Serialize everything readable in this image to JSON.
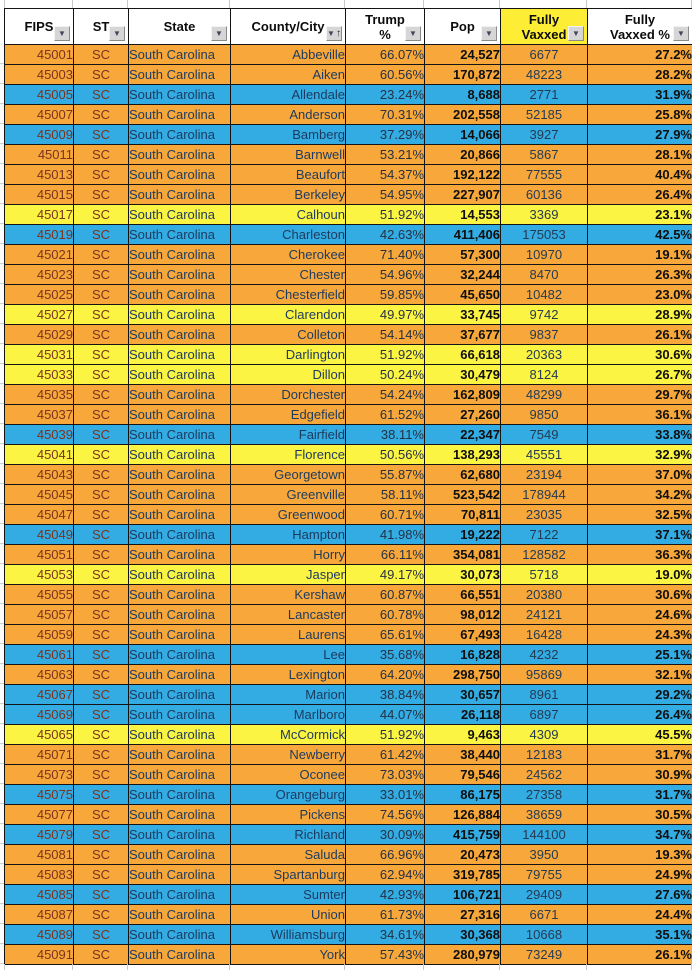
{
  "table": {
    "columns": [
      {
        "key": "fips",
        "label": "FIPS"
      },
      {
        "key": "st",
        "label": "ST"
      },
      {
        "key": "state",
        "label": "State"
      },
      {
        "key": "county",
        "label": "County/City",
        "sorted": "ascending"
      },
      {
        "key": "trump_pct",
        "label": "Trump\n%"
      },
      {
        "key": "pop",
        "label": "Pop"
      },
      {
        "key": "vaxxed",
        "label": "Fully\nVaxxed",
        "highlighted": true
      },
      {
        "key": "vaxxed_pct",
        "label": "Fully\nVaxxed %"
      }
    ],
    "rows": [
      {
        "fips": "45001",
        "st": "SC",
        "state": "South Carolina",
        "county": "Abbeville",
        "trump_pct": "66.07%",
        "pop": "24,527",
        "vaxxed": "6677",
        "vaxxed_pct": "27.2%",
        "color": "orange"
      },
      {
        "fips": "45003",
        "st": "SC",
        "state": "South Carolina",
        "county": "Aiken",
        "trump_pct": "60.56%",
        "pop": "170,872",
        "vaxxed": "48223",
        "vaxxed_pct": "28.2%",
        "color": "orange"
      },
      {
        "fips": "45005",
        "st": "SC",
        "state": "South Carolina",
        "county": "Allendale",
        "trump_pct": "23.24%",
        "pop": "8,688",
        "vaxxed": "2771",
        "vaxxed_pct": "31.9%",
        "color": "blue"
      },
      {
        "fips": "45007",
        "st": "SC",
        "state": "South Carolina",
        "county": "Anderson",
        "trump_pct": "70.31%",
        "pop": "202,558",
        "vaxxed": "52185",
        "vaxxed_pct": "25.8%",
        "color": "orange"
      },
      {
        "fips": "45009",
        "st": "SC",
        "state": "South Carolina",
        "county": "Bamberg",
        "trump_pct": "37.29%",
        "pop": "14,066",
        "vaxxed": "3927",
        "vaxxed_pct": "27.9%",
        "color": "blue"
      },
      {
        "fips": "45011",
        "st": "SC",
        "state": "South Carolina",
        "county": "Barnwell",
        "trump_pct": "53.21%",
        "pop": "20,866",
        "vaxxed": "5867",
        "vaxxed_pct": "28.1%",
        "color": "orange"
      },
      {
        "fips": "45013",
        "st": "SC",
        "state": "South Carolina",
        "county": "Beaufort",
        "trump_pct": "54.37%",
        "pop": "192,122",
        "vaxxed": "77555",
        "vaxxed_pct": "40.4%",
        "color": "orange"
      },
      {
        "fips": "45015",
        "st": "SC",
        "state": "South Carolina",
        "county": "Berkeley",
        "trump_pct": "54.95%",
        "pop": "227,907",
        "vaxxed": "60136",
        "vaxxed_pct": "26.4%",
        "color": "orange"
      },
      {
        "fips": "45017",
        "st": "SC",
        "state": "South Carolina",
        "county": "Calhoun",
        "trump_pct": "51.92%",
        "pop": "14,553",
        "vaxxed": "3369",
        "vaxxed_pct": "23.1%",
        "color": "yellow"
      },
      {
        "fips": "45019",
        "st": "SC",
        "state": "South Carolina",
        "county": "Charleston",
        "trump_pct": "42.63%",
        "pop": "411,406",
        "vaxxed": "175053",
        "vaxxed_pct": "42.5%",
        "color": "blue"
      },
      {
        "fips": "45021",
        "st": "SC",
        "state": "South Carolina",
        "county": "Cherokee",
        "trump_pct": "71.40%",
        "pop": "57,300",
        "vaxxed": "10970",
        "vaxxed_pct": "19.1%",
        "color": "orange"
      },
      {
        "fips": "45023",
        "st": "SC",
        "state": "South Carolina",
        "county": "Chester",
        "trump_pct": "54.96%",
        "pop": "32,244",
        "vaxxed": "8470",
        "vaxxed_pct": "26.3%",
        "color": "orange"
      },
      {
        "fips": "45025",
        "st": "SC",
        "state": "South Carolina",
        "county": "Chesterfield",
        "trump_pct": "59.85%",
        "pop": "45,650",
        "vaxxed": "10482",
        "vaxxed_pct": "23.0%",
        "color": "orange"
      },
      {
        "fips": "45027",
        "st": "SC",
        "state": "South Carolina",
        "county": "Clarendon",
        "trump_pct": "49.97%",
        "pop": "33,745",
        "vaxxed": "9742",
        "vaxxed_pct": "28.9%",
        "color": "yellow"
      },
      {
        "fips": "45029",
        "st": "SC",
        "state": "South Carolina",
        "county": "Colleton",
        "trump_pct": "54.14%",
        "pop": "37,677",
        "vaxxed": "9837",
        "vaxxed_pct": "26.1%",
        "color": "orange"
      },
      {
        "fips": "45031",
        "st": "SC",
        "state": "South Carolina",
        "county": "Darlington",
        "trump_pct": "51.92%",
        "pop": "66,618",
        "vaxxed": "20363",
        "vaxxed_pct": "30.6%",
        "color": "yellow"
      },
      {
        "fips": "45033",
        "st": "SC",
        "state": "South Carolina",
        "county": "Dillon",
        "trump_pct": "50.24%",
        "pop": "30,479",
        "vaxxed": "8124",
        "vaxxed_pct": "26.7%",
        "color": "yellow"
      },
      {
        "fips": "45035",
        "st": "SC",
        "state": "South Carolina",
        "county": "Dorchester",
        "trump_pct": "54.24%",
        "pop": "162,809",
        "vaxxed": "48299",
        "vaxxed_pct": "29.7%",
        "color": "orange"
      },
      {
        "fips": "45037",
        "st": "SC",
        "state": "South Carolina",
        "county": "Edgefield",
        "trump_pct": "61.52%",
        "pop": "27,260",
        "vaxxed": "9850",
        "vaxxed_pct": "36.1%",
        "color": "orange"
      },
      {
        "fips": "45039",
        "st": "SC",
        "state": "South Carolina",
        "county": "Fairfield",
        "trump_pct": "38.11%",
        "pop": "22,347",
        "vaxxed": "7549",
        "vaxxed_pct": "33.8%",
        "color": "blue"
      },
      {
        "fips": "45041",
        "st": "SC",
        "state": "South Carolina",
        "county": "Florence",
        "trump_pct": "50.56%",
        "pop": "138,293",
        "vaxxed": "45551",
        "vaxxed_pct": "32.9%",
        "color": "yellow"
      },
      {
        "fips": "45043",
        "st": "SC",
        "state": "South Carolina",
        "county": "Georgetown",
        "trump_pct": "55.87%",
        "pop": "62,680",
        "vaxxed": "23194",
        "vaxxed_pct": "37.0%",
        "color": "orange"
      },
      {
        "fips": "45045",
        "st": "SC",
        "state": "South Carolina",
        "county": "Greenville",
        "trump_pct": "58.11%",
        "pop": "523,542",
        "vaxxed": "178944",
        "vaxxed_pct": "34.2%",
        "color": "orange"
      },
      {
        "fips": "45047",
        "st": "SC",
        "state": "South Carolina",
        "county": "Greenwood",
        "trump_pct": "60.71%",
        "pop": "70,811",
        "vaxxed": "23035",
        "vaxxed_pct": "32.5%",
        "color": "orange"
      },
      {
        "fips": "45049",
        "st": "SC",
        "state": "South Carolina",
        "county": "Hampton",
        "trump_pct": "41.98%",
        "pop": "19,222",
        "vaxxed": "7122",
        "vaxxed_pct": "37.1%",
        "color": "blue"
      },
      {
        "fips": "45051",
        "st": "SC",
        "state": "South Carolina",
        "county": "Horry",
        "trump_pct": "66.11%",
        "pop": "354,081",
        "vaxxed": "128582",
        "vaxxed_pct": "36.3%",
        "color": "orange"
      },
      {
        "fips": "45053",
        "st": "SC",
        "state": "South Carolina",
        "county": "Jasper",
        "trump_pct": "49.17%",
        "pop": "30,073",
        "vaxxed": "5718",
        "vaxxed_pct": "19.0%",
        "color": "yellow"
      },
      {
        "fips": "45055",
        "st": "SC",
        "state": "South Carolina",
        "county": "Kershaw",
        "trump_pct": "60.87%",
        "pop": "66,551",
        "vaxxed": "20380",
        "vaxxed_pct": "30.6%",
        "color": "orange"
      },
      {
        "fips": "45057",
        "st": "SC",
        "state": "South Carolina",
        "county": "Lancaster",
        "trump_pct": "60.78%",
        "pop": "98,012",
        "vaxxed": "24121",
        "vaxxed_pct": "24.6%",
        "color": "orange"
      },
      {
        "fips": "45059",
        "st": "SC",
        "state": "South Carolina",
        "county": "Laurens",
        "trump_pct": "65.61%",
        "pop": "67,493",
        "vaxxed": "16428",
        "vaxxed_pct": "24.3%",
        "color": "orange"
      },
      {
        "fips": "45061",
        "st": "SC",
        "state": "South Carolina",
        "county": "Lee",
        "trump_pct": "35.68%",
        "pop": "16,828",
        "vaxxed": "4232",
        "vaxxed_pct": "25.1%",
        "color": "blue"
      },
      {
        "fips": "45063",
        "st": "SC",
        "state": "South Carolina",
        "county": "Lexington",
        "trump_pct": "64.20%",
        "pop": "298,750",
        "vaxxed": "95869",
        "vaxxed_pct": "32.1%",
        "color": "orange"
      },
      {
        "fips": "45067",
        "st": "SC",
        "state": "South Carolina",
        "county": "Marion",
        "trump_pct": "38.84%",
        "pop": "30,657",
        "vaxxed": "8961",
        "vaxxed_pct": "29.2%",
        "color": "blue"
      },
      {
        "fips": "45069",
        "st": "SC",
        "state": "South Carolina",
        "county": "Marlboro",
        "trump_pct": "44.07%",
        "pop": "26,118",
        "vaxxed": "6897",
        "vaxxed_pct": "26.4%",
        "color": "blue"
      },
      {
        "fips": "45065",
        "st": "SC",
        "state": "South Carolina",
        "county": "McCormick",
        "trump_pct": "51.92%",
        "pop": "9,463",
        "vaxxed": "4309",
        "vaxxed_pct": "45.5%",
        "color": "yellow"
      },
      {
        "fips": "45071",
        "st": "SC",
        "state": "South Carolina",
        "county": "Newberry",
        "trump_pct": "61.42%",
        "pop": "38,440",
        "vaxxed": "12183",
        "vaxxed_pct": "31.7%",
        "color": "orange"
      },
      {
        "fips": "45073",
        "st": "SC",
        "state": "South Carolina",
        "county": "Oconee",
        "trump_pct": "73.03%",
        "pop": "79,546",
        "vaxxed": "24562",
        "vaxxed_pct": "30.9%",
        "color": "orange"
      },
      {
        "fips": "45075",
        "st": "SC",
        "state": "South Carolina",
        "county": "Orangeburg",
        "trump_pct": "33.01%",
        "pop": "86,175",
        "vaxxed": "27358",
        "vaxxed_pct": "31.7%",
        "color": "blue"
      },
      {
        "fips": "45077",
        "st": "SC",
        "state": "South Carolina",
        "county": "Pickens",
        "trump_pct": "74.56%",
        "pop": "126,884",
        "vaxxed": "38659",
        "vaxxed_pct": "30.5%",
        "color": "orange"
      },
      {
        "fips": "45079",
        "st": "SC",
        "state": "South Carolina",
        "county": "Richland",
        "trump_pct": "30.09%",
        "pop": "415,759",
        "vaxxed": "144100",
        "vaxxed_pct": "34.7%",
        "color": "blue"
      },
      {
        "fips": "45081",
        "st": "SC",
        "state": "South Carolina",
        "county": "Saluda",
        "trump_pct": "66.96%",
        "pop": "20,473",
        "vaxxed": "3950",
        "vaxxed_pct": "19.3%",
        "color": "orange"
      },
      {
        "fips": "45083",
        "st": "SC",
        "state": "South Carolina",
        "county": "Spartanburg",
        "trump_pct": "62.94%",
        "pop": "319,785",
        "vaxxed": "79755",
        "vaxxed_pct": "24.9%",
        "color": "orange"
      },
      {
        "fips": "45085",
        "st": "SC",
        "state": "South Carolina",
        "county": "Sumter",
        "trump_pct": "42.93%",
        "pop": "106,721",
        "vaxxed": "29409",
        "vaxxed_pct": "27.6%",
        "color": "blue"
      },
      {
        "fips": "45087",
        "st": "SC",
        "state": "South Carolina",
        "county": "Union",
        "trump_pct": "61.73%",
        "pop": "27,316",
        "vaxxed": "6671",
        "vaxxed_pct": "24.4%",
        "color": "orange"
      },
      {
        "fips": "45089",
        "st": "SC",
        "state": "South Carolina",
        "county": "Williamsburg",
        "trump_pct": "34.61%",
        "pop": "30,368",
        "vaxxed": "10668",
        "vaxxed_pct": "35.1%",
        "color": "blue"
      },
      {
        "fips": "45091",
        "st": "SC",
        "state": "South Carolina",
        "county": "York",
        "trump_pct": "57.43%",
        "pop": "280,979",
        "vaxxed": "73249",
        "vaxxed_pct": "26.1%",
        "color": "orange"
      }
    ]
  },
  "icons": {
    "filter_dropdown": "▼",
    "sort_ascending": "↑"
  },
  "colors": {
    "row_orange": "#f8a83a",
    "row_blue": "#33ace3",
    "row_yellow": "#fbf442",
    "header_highlight": "#fdee35",
    "cell_border": "#141414",
    "fips_text": "#7b331f",
    "name_text": "#1c3a5e",
    "bold_text": "#0f0f0f"
  }
}
